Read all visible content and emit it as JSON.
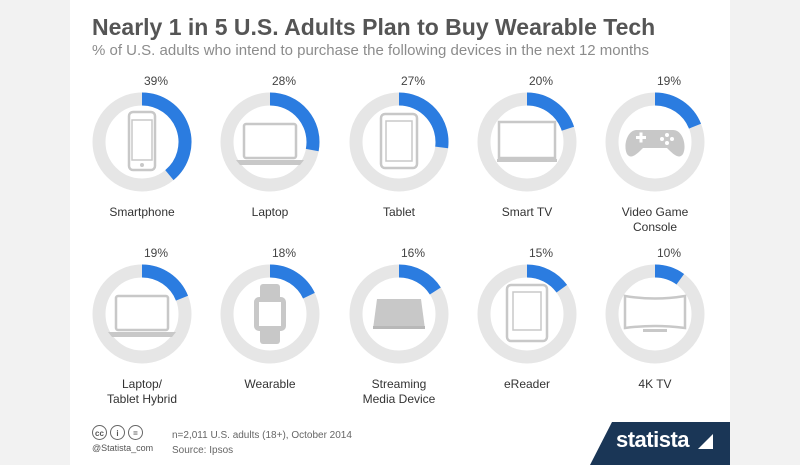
{
  "title": "Nearly 1 in 5 U.S. Adults Plan to Buy Wearable Tech",
  "subtitle": "% of U.S. adults who intend to purchase the following devices in the next 12 months",
  "colors": {
    "accent": "#2b7ce0",
    "track": "#e6e6e6",
    "icon": "#c8c8c8",
    "brand": "#1a3656"
  },
  "chart_data": {
    "type": "donut-grid",
    "unit": "%",
    "items": [
      {
        "label": [
          "Smartphone"
        ],
        "value": 39,
        "pct_label": "39%",
        "icon": "smartphone-icon"
      },
      {
        "label": [
          "Laptop"
        ],
        "value": 28,
        "pct_label": "28%",
        "icon": "laptop-icon"
      },
      {
        "label": [
          "Tablet"
        ],
        "value": 27,
        "pct_label": "27%",
        "icon": "tablet-icon"
      },
      {
        "label": [
          "Smart TV"
        ],
        "value": 20,
        "pct_label": "20%",
        "icon": "tv-icon"
      },
      {
        "label": [
          "Video Game",
          "Console"
        ],
        "value": 19,
        "pct_label": "19%",
        "icon": "gamepad-icon"
      },
      {
        "label": [
          "Laptop/",
          "Tablet Hybrid"
        ],
        "value": 19,
        "pct_label": "19%",
        "icon": "hybrid-laptop-icon"
      },
      {
        "label": [
          "Wearable"
        ],
        "value": 18,
        "pct_label": "18%",
        "icon": "smartwatch-icon"
      },
      {
        "label": [
          "Streaming",
          "Media Device"
        ],
        "value": 16,
        "pct_label": "16%",
        "icon": "streaming-box-icon"
      },
      {
        "label": [
          "eReader"
        ],
        "value": 15,
        "pct_label": "15%",
        "icon": "ereader-icon"
      },
      {
        "label": [
          "4K TV"
        ],
        "value": 10,
        "pct_label": "10%",
        "icon": "curved-tv-icon"
      }
    ]
  },
  "footer": {
    "cc_badges": [
      "cc",
      "i",
      "="
    ],
    "handle": "@Statista_com",
    "note": "n=2,011 U.S. adults (18+), October 2014",
    "source": "Source: Ipsos",
    "brand": "statista"
  }
}
